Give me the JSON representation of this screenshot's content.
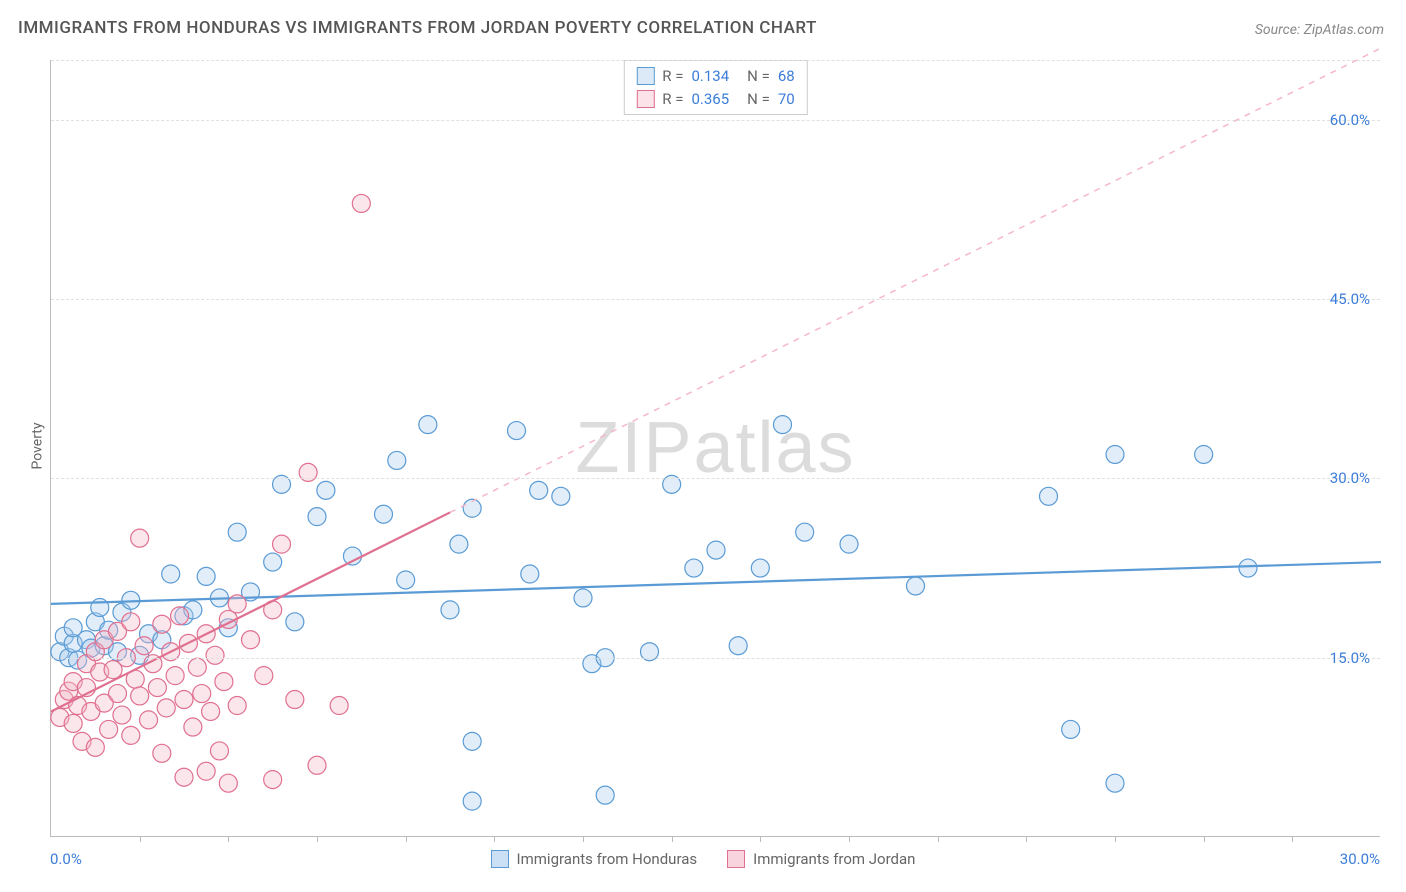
{
  "title": "IMMIGRANTS FROM HONDURAS VS IMMIGRANTS FROM JORDAN POVERTY CORRELATION CHART",
  "source": "Source: ZipAtlas.com",
  "y_label": "Poverty",
  "watermark": "ZIPatlas",
  "chart": {
    "type": "scatter",
    "xlim": [
      0,
      30
    ],
    "ylim": [
      0,
      65
    ],
    "x_tick_labels": [
      "0.0%",
      "30.0%"
    ],
    "y_ticks": [
      15,
      30,
      45,
      60
    ],
    "y_tick_labels": [
      "15.0%",
      "30.0%",
      "45.0%",
      "60.0%"
    ],
    "x_minor_ticks": 14,
    "background_color": "#ffffff",
    "grid_color": "#e0e0e0",
    "axis_color": "#bbbbbb",
    "marker_radius": 9,
    "marker_fill_opacity": 0.35,
    "series": [
      {
        "name": "Immigrants from Honduras",
        "color": "#5a9bd5",
        "fill": "#a8cbed",
        "R": "0.134",
        "N": "68",
        "trend": {
          "y_at_x0": 19.5,
          "y_at_xmax": 23.0,
          "style": "solid",
          "width": 2.2,
          "extend_dashed": false
        },
        "points": [
          [
            0.2,
            15.5
          ],
          [
            0.3,
            16.8
          ],
          [
            0.4,
            15.0
          ],
          [
            0.5,
            16.2
          ],
          [
            0.5,
            17.5
          ],
          [
            0.6,
            14.8
          ],
          [
            0.8,
            16.5
          ],
          [
            0.9,
            15.8
          ],
          [
            1.0,
            18.0
          ],
          [
            1.1,
            19.2
          ],
          [
            1.2,
            16.0
          ],
          [
            1.3,
            17.3
          ],
          [
            1.5,
            15.5
          ],
          [
            1.6,
            18.8
          ],
          [
            1.8,
            19.8
          ],
          [
            2.0,
            15.2
          ],
          [
            2.2,
            17.0
          ],
          [
            2.5,
            16.5
          ],
          [
            2.7,
            22.0
          ],
          [
            3.0,
            18.5
          ],
          [
            3.2,
            19.0
          ],
          [
            3.5,
            21.8
          ],
          [
            3.8,
            20.0
          ],
          [
            4.0,
            17.5
          ],
          [
            4.2,
            25.5
          ],
          [
            4.5,
            20.5
          ],
          [
            5.0,
            23.0
          ],
          [
            5.2,
            29.5
          ],
          [
            5.5,
            18.0
          ],
          [
            6.0,
            26.8
          ],
          [
            6.2,
            29.0
          ],
          [
            6.8,
            23.5
          ],
          [
            7.5,
            27.0
          ],
          [
            7.8,
            31.5
          ],
          [
            8.0,
            21.5
          ],
          [
            8.5,
            34.5
          ],
          [
            9.0,
            19.0
          ],
          [
            9.2,
            24.5
          ],
          [
            9.5,
            27.5
          ],
          [
            9.5,
            8.0
          ],
          [
            9.5,
            3.0
          ],
          [
            10.5,
            34.0
          ],
          [
            10.8,
            22.0
          ],
          [
            11.0,
            29.0
          ],
          [
            11.5,
            28.5
          ],
          [
            12.0,
            20.0
          ],
          [
            12.2,
            14.5
          ],
          [
            12.5,
            15.0
          ],
          [
            12.5,
            3.5
          ],
          [
            13.5,
            15.5
          ],
          [
            14.0,
            29.5
          ],
          [
            14.5,
            22.5
          ],
          [
            15.0,
            24.0
          ],
          [
            15.5,
            16.0
          ],
          [
            16.0,
            22.5
          ],
          [
            16.5,
            34.5
          ],
          [
            17.0,
            25.5
          ],
          [
            18.0,
            24.5
          ],
          [
            19.5,
            21.0
          ],
          [
            22.5,
            28.5
          ],
          [
            23.0,
            9.0
          ],
          [
            24.0,
            4.5
          ],
          [
            24.0,
            32.0
          ],
          [
            26.0,
            32.0
          ],
          [
            27.0,
            22.5
          ]
        ]
      },
      {
        "name": "Immigrants from Jordan",
        "color": "#e07090",
        "fill": "#f4b8c8",
        "R": "0.365",
        "N": "70",
        "trend": {
          "y_at_x0": 10.5,
          "y_at_xmax": 66.0,
          "style": "dashed",
          "width": 1.5,
          "solid_until_x": 9.0
        },
        "points": [
          [
            0.2,
            10.0
          ],
          [
            0.3,
            11.5
          ],
          [
            0.4,
            12.2
          ],
          [
            0.5,
            9.5
          ],
          [
            0.5,
            13.0
          ],
          [
            0.6,
            11.0
          ],
          [
            0.7,
            8.0
          ],
          [
            0.8,
            12.5
          ],
          [
            0.8,
            14.5
          ],
          [
            0.9,
            10.5
          ],
          [
            1.0,
            15.5
          ],
          [
            1.0,
            7.5
          ],
          [
            1.1,
            13.8
          ],
          [
            1.2,
            11.2
          ],
          [
            1.2,
            16.5
          ],
          [
            1.3,
            9.0
          ],
          [
            1.4,
            14.0
          ],
          [
            1.5,
            12.0
          ],
          [
            1.5,
            17.2
          ],
          [
            1.6,
            10.2
          ],
          [
            1.7,
            15.0
          ],
          [
            1.8,
            8.5
          ],
          [
            1.8,
            18.0
          ],
          [
            1.9,
            13.2
          ],
          [
            2.0,
            11.8
          ],
          [
            2.0,
            25.0
          ],
          [
            2.1,
            16.0
          ],
          [
            2.2,
            9.8
          ],
          [
            2.3,
            14.5
          ],
          [
            2.4,
            12.5
          ],
          [
            2.5,
            17.8
          ],
          [
            2.5,
            7.0
          ],
          [
            2.6,
            10.8
          ],
          [
            2.7,
            15.5
          ],
          [
            2.8,
            13.5
          ],
          [
            2.9,
            18.5
          ],
          [
            3.0,
            11.5
          ],
          [
            3.0,
            5.0
          ],
          [
            3.1,
            16.2
          ],
          [
            3.2,
            9.2
          ],
          [
            3.3,
            14.2
          ],
          [
            3.4,
            12.0
          ],
          [
            3.5,
            17.0
          ],
          [
            3.5,
            5.5
          ],
          [
            3.6,
            10.5
          ],
          [
            3.7,
            15.2
          ],
          [
            3.8,
            7.2
          ],
          [
            3.9,
            13.0
          ],
          [
            4.0,
            18.2
          ],
          [
            4.0,
            4.5
          ],
          [
            4.2,
            11.0
          ],
          [
            4.2,
            19.5
          ],
          [
            4.5,
            16.5
          ],
          [
            4.8,
            13.5
          ],
          [
            5.0,
            4.8
          ],
          [
            5.0,
            19.0
          ],
          [
            5.2,
            24.5
          ],
          [
            5.5,
            11.5
          ],
          [
            5.8,
            30.5
          ],
          [
            6.0,
            6.0
          ],
          [
            6.5,
            11.0
          ],
          [
            7.0,
            53.0
          ]
        ]
      }
    ]
  },
  "legend_bottom": [
    {
      "label": "Immigrants from Honduras",
      "fill": "#a8cbed",
      "border": "#5a9bd5"
    },
    {
      "label": "Immigrants from Jordan",
      "fill": "#f4b8c8",
      "border": "#e07090"
    }
  ]
}
